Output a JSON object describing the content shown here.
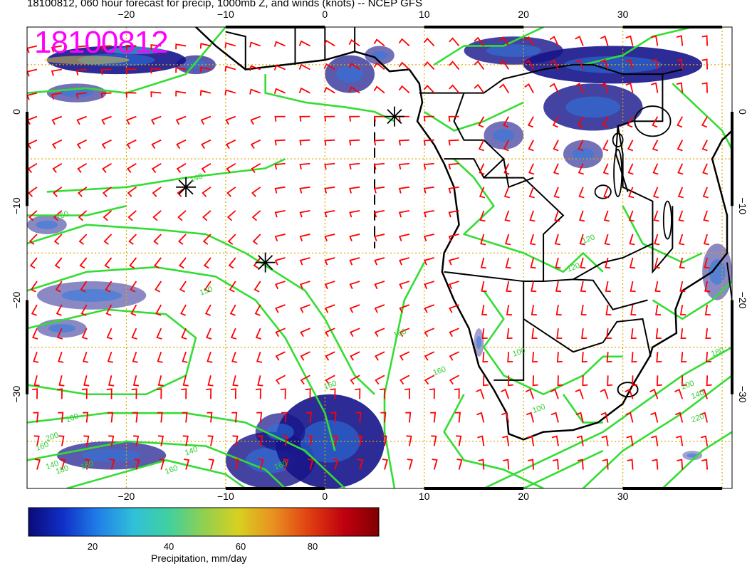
{
  "title": "18100812, 060 hour forecast for precip, 1000mb Z, and winds (knots) -- NCEP GFS",
  "stamp": "18100812",
  "map": {
    "lon_range": [
      -30,
      41
    ],
    "lat_range": [
      -40,
      9
    ],
    "lon_ticks": [
      -20,
      -10,
      0,
      10,
      20,
      30
    ],
    "lat_ticks": [
      0,
      -10,
      -20,
      -30
    ],
    "lon_tick_labels": [
      "−20",
      "−10",
      "0",
      "10",
      "20",
      "30"
    ],
    "lat_tick_labels": [
      "0",
      "−10",
      "−20",
      "−30"
    ],
    "contour_labels": [
      "160",
      "140",
      "160",
      "180",
      "150",
      "160",
      "160",
      "140",
      "140",
      "200",
      "180",
      "160",
      "160",
      "100",
      "120",
      "160",
      "160",
      "180",
      "220",
      "200",
      "100",
      "120",
      "140"
    ],
    "colors": {
      "wind_barbs": "#ff0000",
      "contours": "#33dd33",
      "coast": "#000000",
      "grid": "#ddaa00",
      "stamp": "#ff00ff"
    }
  },
  "colorbar": {
    "label": "Precipitation, mm/day",
    "ticks": [
      "20",
      "40",
      "60",
      "80"
    ],
    "tick_values": [
      20,
      40,
      60,
      80
    ],
    "range": [
      0,
      100
    ],
    "colors": [
      "#0a0a78",
      "#1030c8",
      "#2080e8",
      "#30c0d8",
      "#40d0a0",
      "#90d050",
      "#d8d020",
      "#e89020",
      "#e04010",
      "#c00010",
      "#800000"
    ]
  }
}
